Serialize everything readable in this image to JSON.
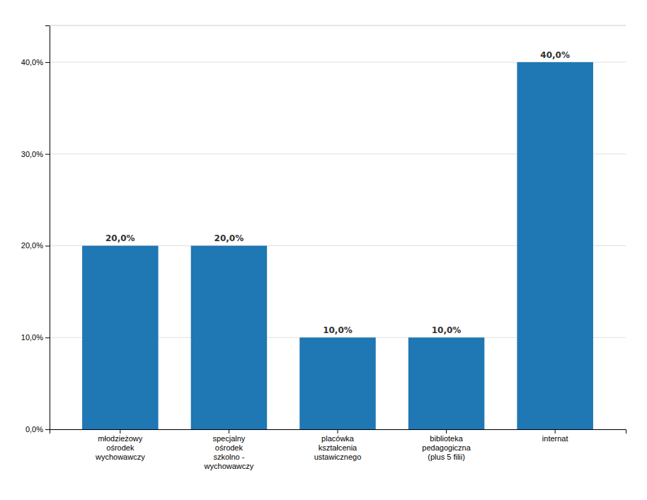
{
  "chart_data": {
    "type": "bar",
    "categories": [
      "młodzieżowy\nośrodek\nwychowawczy",
      "specjalny\nośrodek\nszkolno -\nwychowawczy",
      "placówka\nkształcenia\nustawicznego",
      "biblioteka\npedagogiczna\n(plus 5 filii)",
      "internat"
    ],
    "values": [
      20.0,
      20.0,
      10.0,
      10.0,
      40.0
    ],
    "value_labels": [
      "20,0%",
      "20,0%",
      "10,0%",
      "10,0%",
      "40,0%"
    ],
    "data_labels": true,
    "ylim": [
      0,
      44
    ],
    "yticks": [
      {
        "value": 0.0,
        "label": "0,0%"
      },
      {
        "value": 10.0,
        "label": "10,0%"
      },
      {
        "value": 20.0,
        "label": "20,0%"
      },
      {
        "value": 30.0,
        "label": "30,0%"
      },
      {
        "value": 40.0,
        "label": "40,0%"
      }
    ],
    "grid": true
  }
}
